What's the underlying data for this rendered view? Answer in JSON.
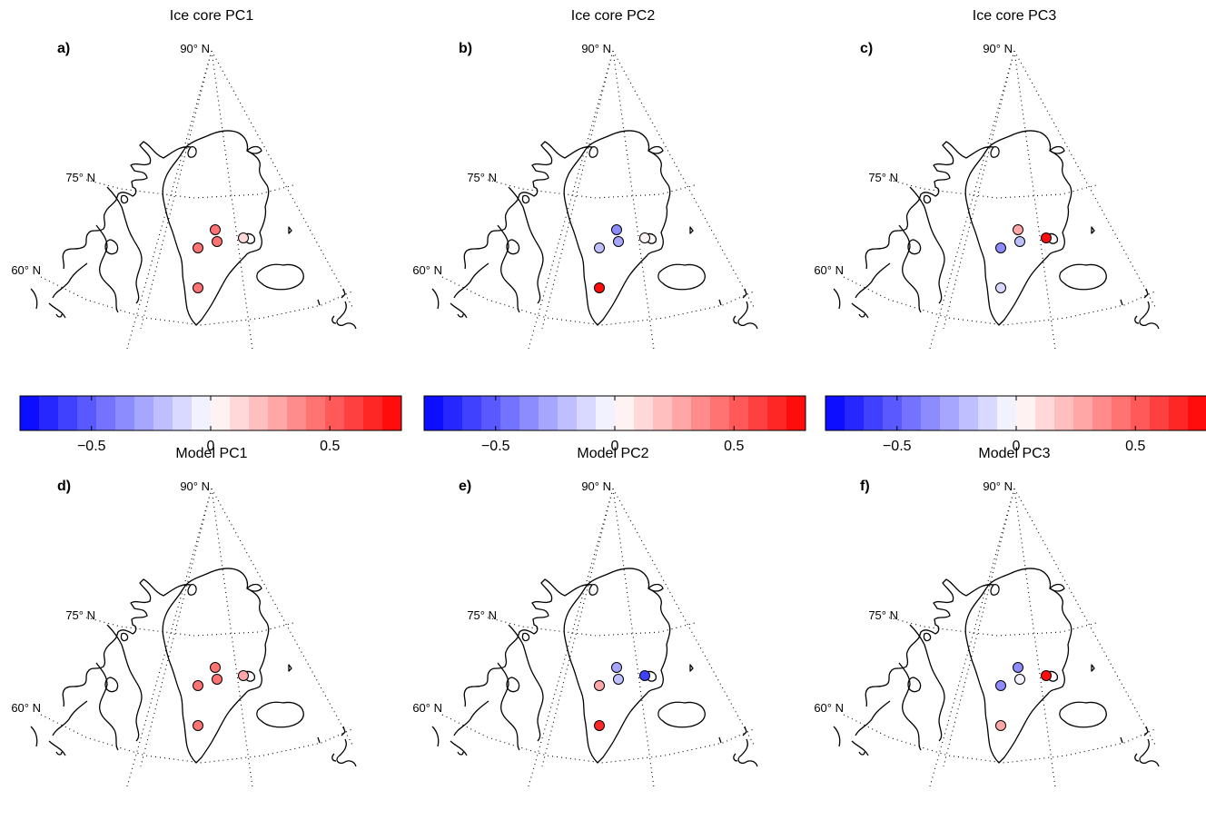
{
  "figure": {
    "panels": [
      {
        "id": "a",
        "label": "a)",
        "title": "Ice core PC1",
        "lat_labels": [
          "90° N",
          "75° N",
          "60° N"
        ],
        "sites": [
          {
            "loading": 0.4
          },
          {
            "loading": 0.4
          },
          {
            "loading": 0.4
          },
          {
            "loading": 0.15
          },
          {
            "loading": 0.4
          }
        ]
      },
      {
        "id": "b",
        "label": "b)",
        "title": "Ice core PC2",
        "lat_labels": [
          "90° N",
          "75° N",
          "60° N"
        ],
        "sites": [
          {
            "loading": -0.35
          },
          {
            "loading": -0.25
          },
          {
            "loading": -0.2
          },
          {
            "loading": 0.0
          },
          {
            "loading": 0.75
          }
        ]
      },
      {
        "id": "c",
        "label": "c)",
        "title": "Ice core PC3",
        "lat_labels": [
          "90° N",
          "75° N",
          "60° N"
        ],
        "sites": [
          {
            "loading": 0.3
          },
          {
            "loading": -0.2
          },
          {
            "loading": -0.4
          },
          {
            "loading": 0.8
          },
          {
            "loading": -0.1
          }
        ]
      },
      {
        "id": "d",
        "label": "d)",
        "title": "Model PC1",
        "lat_labels": [
          "90° N",
          "75° N",
          "60° N"
        ],
        "sites": [
          {
            "loading": 0.45
          },
          {
            "loading": 0.45
          },
          {
            "loading": 0.45
          },
          {
            "loading": 0.3
          },
          {
            "loading": 0.45
          }
        ]
      },
      {
        "id": "e",
        "label": "e)",
        "title": "Model PC2",
        "lat_labels": [
          "90° N",
          "75° N",
          "60° N"
        ],
        "sites": [
          {
            "loading": -0.3
          },
          {
            "loading": -0.2
          },
          {
            "loading": 0.3
          },
          {
            "loading": -0.6
          },
          {
            "loading": 0.7
          }
        ]
      },
      {
        "id": "f",
        "label": "f)",
        "title": "Model PC3",
        "lat_labels": [
          "90° N",
          "75° N",
          "60° N"
        ],
        "sites": [
          {
            "loading": -0.4
          },
          {
            "loading": -0.05
          },
          {
            "loading": -0.35
          },
          {
            "loading": 0.8
          },
          {
            "loading": 0.25
          }
        ]
      }
    ],
    "colorbar": {
      "range": [
        -0.8,
        0.8
      ],
      "levels": 20,
      "ticks": [
        -0.5,
        0,
        0.5
      ],
      "tick_labels": [
        "−0.5",
        "0",
        "0.5"
      ],
      "colormap": "blue-white-red",
      "negative_color": "#0000ff",
      "neutral_color": "#ffffff",
      "positive_color": "#ff0000"
    }
  }
}
